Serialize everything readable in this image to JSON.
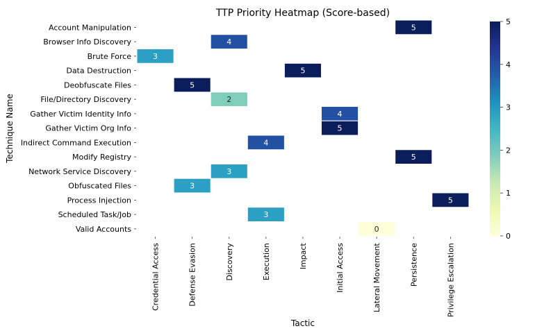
{
  "chart_data": {
    "type": "heatmap",
    "title": "TTP Priority Heatmap (Score-based)",
    "xlabel": "Tactic",
    "ylabel": "Technique Name",
    "x_categories": [
      "Credential Access",
      "Defense Evasion",
      "Discovery",
      "Execution",
      "Impact",
      "Initial Access",
      "Lateral Movement",
      "Persistence",
      "Privilege Escalation"
    ],
    "y_categories": [
      "Account Manipulation",
      "Browser Info Discovery",
      "Brute Force",
      "Data Destruction",
      "Deobfuscate Files",
      "File/Directory Discovery",
      "Gather Victim Identity Info",
      "Gather Victim Org Info",
      "Indirect Command Execution",
      "Modify Registry",
      "Network Service Discovery",
      "Obfuscated Files",
      "Process Injection",
      "Scheduled Task/Job",
      "Valid Accounts"
    ],
    "cells": [
      {
        "x": "Persistence",
        "y": "Account Manipulation",
        "value": 5
      },
      {
        "x": "Discovery",
        "y": "Browser Info Discovery",
        "value": 4
      },
      {
        "x": "Credential Access",
        "y": "Brute Force",
        "value": 3
      },
      {
        "x": "Impact",
        "y": "Data Destruction",
        "value": 5
      },
      {
        "x": "Defense Evasion",
        "y": "Deobfuscate Files",
        "value": 5
      },
      {
        "x": "Discovery",
        "y": "File/Directory Discovery",
        "value": 2
      },
      {
        "x": "Initial Access",
        "y": "Gather Victim Identity Info",
        "value": 4
      },
      {
        "x": "Initial Access",
        "y": "Gather Victim Org Info",
        "value": 5
      },
      {
        "x": "Execution",
        "y": "Indirect Command Execution",
        "value": 4
      },
      {
        "x": "Persistence",
        "y": "Modify Registry",
        "value": 5
      },
      {
        "x": "Discovery",
        "y": "Network Service Discovery",
        "value": 3
      },
      {
        "x": "Defense Evasion",
        "y": "Obfuscated Files",
        "value": 3
      },
      {
        "x": "Privilege Escalation",
        "y": "Process Injection",
        "value": 5
      },
      {
        "x": "Execution",
        "y": "Scheduled Task/Job",
        "value": 3
      },
      {
        "x": "Lateral Movement",
        "y": "Valid Accounts",
        "value": 0
      }
    ],
    "colorbar": {
      "min": 0,
      "max": 5,
      "ticks": [
        0,
        1,
        2,
        3,
        4,
        5
      ],
      "colormap": "YlGnBu"
    },
    "colors": {
      "0": "#ffffd9",
      "1": "#edf8b1",
      "2": "#7fcdbb",
      "3": "#2c9fc4",
      "4": "#2251a3",
      "5": "#0c1d5c"
    }
  }
}
